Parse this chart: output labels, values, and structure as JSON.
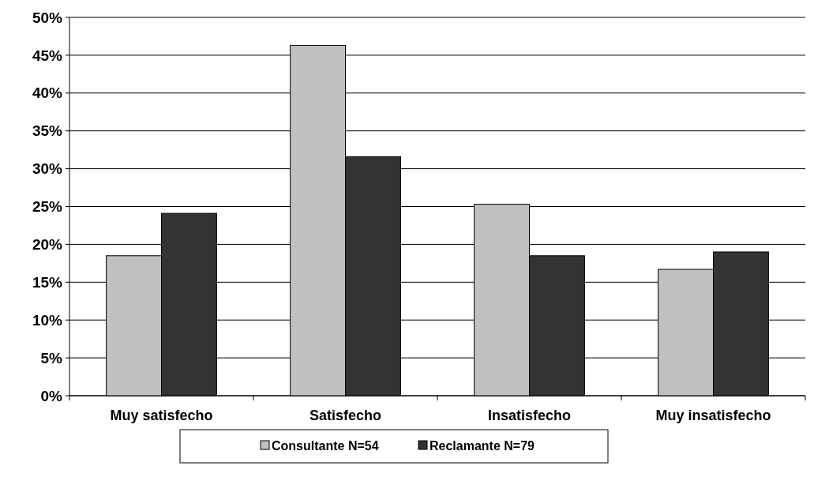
{
  "chart_data": {
    "type": "bar",
    "categories": [
      "Muy satisfecho",
      "Satisfecho",
      "Insatisfecho",
      "Muy insatisfecho"
    ],
    "series": [
      {
        "name": "Consultante N=54",
        "color": "#c0c0c0",
        "values": [
          18.5,
          46.3,
          25.3,
          16.7
        ]
      },
      {
        "name": "Reclamante N=79",
        "color": "#333333",
        "values": [
          24.1,
          31.6,
          18.5,
          19.0
        ]
      }
    ],
    "ylim": [
      0,
      50
    ],
    "yticks": [
      {
        "value": 0,
        "label": "0%"
      },
      {
        "value": 5,
        "label": "5%"
      },
      {
        "value": 10,
        "label": "10%"
      },
      {
        "value": 15,
        "label": "15%"
      },
      {
        "value": 20,
        "label": "20%"
      },
      {
        "value": 25,
        "label": "25%"
      },
      {
        "value": 30,
        "label": "30%"
      },
      {
        "value": 35,
        "label": "35%"
      },
      {
        "value": 40,
        "label": "40%"
      },
      {
        "value": 45,
        "label": "45%"
      },
      {
        "value": 50,
        "label": "50%"
      }
    ],
    "grid": "y",
    "legend": "bottom"
  }
}
